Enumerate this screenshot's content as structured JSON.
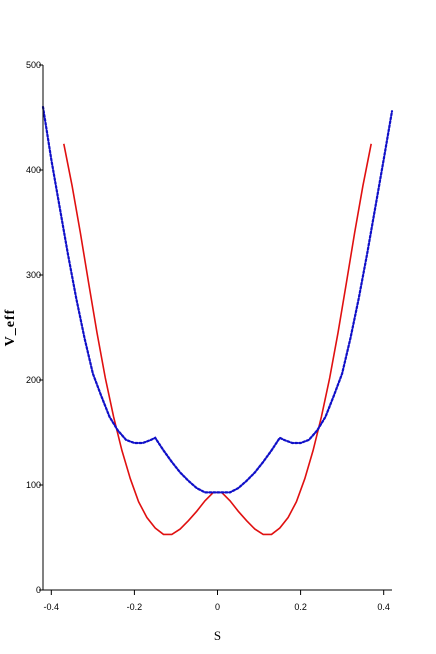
{
  "chart_data": {
    "type": "line",
    "title": "",
    "xlabel": "S",
    "ylabel": "V_eff",
    "xlim": [
      -0.42,
      0.42
    ],
    "ylim": [
      0,
      500
    ],
    "grid": false,
    "legend": "none",
    "x_ticks": [
      {
        "value": -0.4,
        "label": "-0.4"
      },
      {
        "value": -0.2,
        "label": "-0.2"
      },
      {
        "value": 0,
        "label": "0"
      },
      {
        "value": 0.2,
        "label": "0.2"
      },
      {
        "value": 0.4,
        "label": "0.4"
      }
    ],
    "y_ticks": [
      {
        "value": 0,
        "label": "0"
      },
      {
        "value": 100,
        "label": "100"
      },
      {
        "value": 200,
        "label": "200"
      },
      {
        "value": 300,
        "label": "300"
      },
      {
        "value": 400,
        "label": "400"
      },
      {
        "value": 500,
        "label": "500"
      }
    ],
    "series": [
      {
        "style": "solid",
        "color": "#e01010",
        "points": [
          [
            -0.37,
            425
          ],
          [
            -0.35,
            385
          ],
          [
            -0.33,
            340
          ],
          [
            -0.31,
            292
          ],
          [
            -0.29,
            245
          ],
          [
            -0.27,
            202
          ],
          [
            -0.25,
            165
          ],
          [
            -0.23,
            133
          ],
          [
            -0.21,
            106
          ],
          [
            -0.19,
            84
          ],
          [
            -0.17,
            69
          ],
          [
            -0.15,
            59
          ],
          [
            -0.13,
            53
          ],
          [
            -0.11,
            53
          ],
          [
            -0.09,
            58
          ],
          [
            -0.07,
            66
          ],
          [
            -0.05,
            75
          ],
          [
            -0.03,
            85
          ],
          [
            -0.01,
            93
          ],
          [
            0.01,
            93
          ],
          [
            0.03,
            85
          ],
          [
            0.05,
            75
          ],
          [
            0.07,
            66
          ],
          [
            0.09,
            58
          ],
          [
            0.11,
            53
          ],
          [
            0.13,
            53
          ],
          [
            0.15,
            59
          ],
          [
            0.17,
            69
          ],
          [
            0.19,
            84
          ],
          [
            0.21,
            106
          ],
          [
            0.23,
            133
          ],
          [
            0.25,
            165
          ],
          [
            0.27,
            202
          ],
          [
            0.29,
            245
          ],
          [
            0.31,
            292
          ],
          [
            0.33,
            340
          ],
          [
            0.35,
            385
          ],
          [
            0.37,
            425
          ]
        ]
      },
      {
        "style": "dotted",
        "color": "#1010c8",
        "points": [
          [
            -0.42,
            460
          ],
          [
            -0.4,
            410
          ],
          [
            -0.38,
            365
          ],
          [
            -0.36,
            320
          ],
          [
            -0.34,
            278
          ],
          [
            -0.32,
            240
          ],
          [
            -0.3,
            206
          ],
          [
            -0.28,
            185
          ],
          [
            -0.26,
            165
          ],
          [
            -0.24,
            152
          ],
          [
            -0.22,
            143
          ],
          [
            -0.2,
            140
          ],
          [
            -0.18,
            140
          ],
          [
            -0.16,
            143
          ],
          [
            -0.15,
            145
          ],
          [
            -0.13,
            133
          ],
          [
            -0.11,
            122
          ],
          [
            -0.09,
            112
          ],
          [
            -0.07,
            104
          ],
          [
            -0.05,
            97
          ],
          [
            -0.03,
            93
          ],
          [
            0.0,
            93
          ],
          [
            0.03,
            93
          ],
          [
            0.05,
            97
          ],
          [
            0.07,
            104
          ],
          [
            0.09,
            112
          ],
          [
            0.11,
            122
          ],
          [
            0.13,
            133
          ],
          [
            0.15,
            145
          ],
          [
            0.16,
            143
          ],
          [
            0.18,
            140
          ],
          [
            0.2,
            140
          ],
          [
            0.22,
            143
          ],
          [
            0.24,
            152
          ],
          [
            0.26,
            165
          ],
          [
            0.28,
            185
          ],
          [
            0.3,
            206
          ],
          [
            0.32,
            240
          ],
          [
            0.34,
            278
          ],
          [
            0.36,
            320
          ],
          [
            0.38,
            365
          ],
          [
            0.4,
            410
          ],
          [
            0.42,
            456
          ]
        ]
      }
    ]
  }
}
